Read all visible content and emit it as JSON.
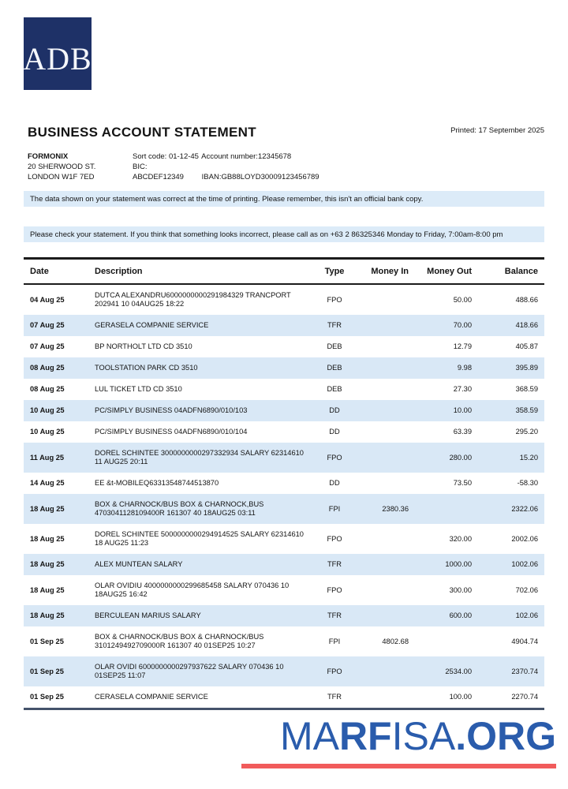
{
  "brand": {
    "logo_text": "ADB",
    "logo_bg": "#1e3167"
  },
  "header": {
    "title": "BUSINESS ACCOUNT STATEMENT",
    "printed": "Printed: 17 September 2025",
    "account_holder": {
      "name": "FORMONIX",
      "address_line1": "20 SHERWOOD ST.",
      "address_line2": "LONDON W1F 7ED"
    },
    "account_details": {
      "sort_code": "Sort code: 01-12-45",
      "account_number": "Account number:12345678",
      "bic": "BIC: ABCDEF12349",
      "iban": "IBAN:GB88LOYD30009123456789"
    }
  },
  "notices": {
    "accuracy": "The data shown on your statement was correct at the time of printing. Please remember, this isn't an official bank copy.",
    "contact": "Please check your statement. If you think that something looks incorrect, please call as on +63 2 86325346 Monday to Friday, 7:00am-8:00 pm"
  },
  "table": {
    "columns": [
      "Date",
      "Description",
      "Type",
      "Money In",
      "Money Out",
      "Balance"
    ],
    "rows": [
      {
        "date": "04 Aug 25",
        "description": "DUTCA ALEXANDRU6000000000291984329 TRANCPORT 202941 10 04AUG25 18:22",
        "type": "FPO",
        "money_in": "",
        "money_out": "50.00",
        "balance": "488.66"
      },
      {
        "date": "07 Aug 25",
        "description": "GERASELA COMPANIE SERVICE",
        "type": "TFR",
        "money_in": "",
        "money_out": "70.00",
        "balance": "418.66"
      },
      {
        "date": "07 Aug 25",
        "description": "BP NORTHOLT LTD CD 3510",
        "type": "DEB",
        "money_in": "",
        "money_out": "12.79",
        "balance": "405.87"
      },
      {
        "date": "08 Aug 25",
        "description": "TOOLSTATION PARK CD 3510",
        "type": "DEB",
        "money_in": "",
        "money_out": "9.98",
        "balance": "395.89"
      },
      {
        "date": "08 Aug 25",
        "description": "LUL TICKET LTD CD 3510",
        "type": "DEB",
        "money_in": "",
        "money_out": "27.30",
        "balance": "368.59"
      },
      {
        "date": "10 Aug 25",
        "description": "PC/SIMPLY BUSINESS 04ADFN6890/010/103",
        "type": "DD",
        "money_in": "",
        "money_out": "10.00",
        "balance": "358.59"
      },
      {
        "date": "10 Aug 25",
        "description": "PC/SIMPLY BUSINESS 04ADFN6890/010/104",
        "type": "DD",
        "money_in": "",
        "money_out": "63.39",
        "balance": "295.20"
      },
      {
        "date": "11 Aug 25",
        "description": "DOREL SCHINTEE 3000000000297332934 SALARY 62314610 11 AUG25 20:11",
        "type": "FPO",
        "money_in": "",
        "money_out": "280.00",
        "balance": "15.20"
      },
      {
        "date": "14 Aug 25",
        "description": "EE &t-MOBILEQ63313548744513870",
        "type": "DD",
        "money_in": "",
        "money_out": "73.50",
        "balance": "-58.30"
      },
      {
        "date": "18 Aug 25",
        "description": "BOX & CHARNOCK/BUS BOX & CHARNOCK,BUS 4703041128109400R 161307 40 18AUG25 03:11",
        "type": "FPI",
        "money_in": "2380.36",
        "money_out": "",
        "balance": "2322.06"
      },
      {
        "date": "18 Aug 25",
        "description": "DOREL SCHINTEE 5000000000294914525 SALARY 62314610 18 AUG25 11:23",
        "type": "FPO",
        "money_in": "",
        "money_out": "320.00",
        "balance": "2002.06"
      },
      {
        "date": "18 Aug 25",
        "description": "ALEX MUNTEAN SALARY",
        "type": "TFR",
        "money_in": "",
        "money_out": "1000.00",
        "balance": "1002.06"
      },
      {
        "date": "18 Aug 25",
        "description": "OLAR OVIDIU 4000000000299685458 SALARY 070436 10 18AUG25 16:42",
        "type": "FPO",
        "money_in": "",
        "money_out": "300.00",
        "balance": "702.06"
      },
      {
        "date": "18 Aug 25",
        "description": "BERCULEAN MARIUS SALARY",
        "type": "TFR",
        "money_in": "",
        "money_out": "600.00",
        "balance": "102.06"
      },
      {
        "date": "01 Sep 25",
        "description": "BOX & CHARNOCK/BUS BOX & CHARNOCK/BUS 3101249492709000R 161307 40 01SEP25 10:27",
        "type": "FPI",
        "money_in": "4802.68",
        "money_out": "",
        "balance": "4904.74"
      },
      {
        "date": "01 Sep 25",
        "description": "OLAR OVIDI 6000000000297937622 SALARY 070436 10 01SEP25 11:07",
        "type": "FPO",
        "money_in": "",
        "money_out": "2534.00",
        "balance": "2370.74"
      },
      {
        "date": "01 Sep 25",
        "description": "CERASELA COMPANIE SERVICE",
        "type": "TFR",
        "money_in": "",
        "money_out": "100.00",
        "balance": "2270.74"
      }
    ]
  },
  "watermark": {
    "segments": [
      {
        "text": "MA",
        "weight": "400"
      },
      {
        "text": "RF",
        "weight": "700"
      },
      {
        "text": "ISA",
        "weight": "400"
      },
      {
        "text": ".ORG",
        "weight": "700"
      }
    ],
    "text_color": "#2a5cac",
    "underline_color": "#f15b5b"
  }
}
